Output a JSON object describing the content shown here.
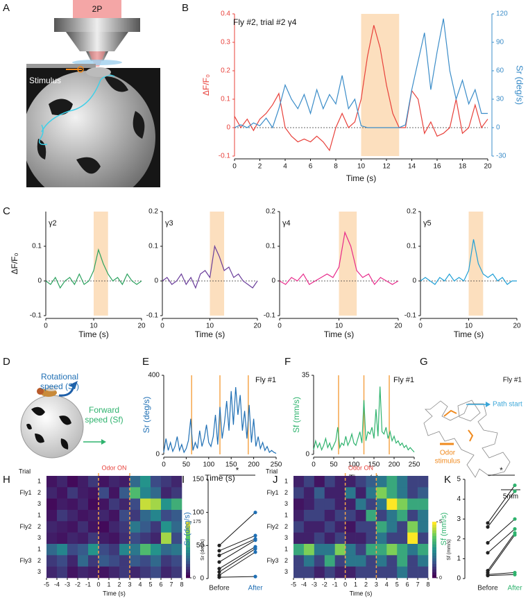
{
  "panel_labels": [
    "A",
    "B",
    "C",
    "D",
    "E",
    "F",
    "G",
    "H",
    "I",
    "J",
    "K"
  ],
  "illustrations": {
    "a_objective": "2P",
    "a_stimulus": "Stimulus",
    "d_rotational": [
      "Rotational",
      "speed (Sr)"
    ],
    "d_forward": [
      "Forward",
      "speed (Sf)"
    ],
    "g_title": "Fly #1",
    "g_path_start": "Path start",
    "g_odor": [
      "Odor",
      "stimulus"
    ],
    "g_scale": "5mm"
  },
  "chart_data": [
    {
      "type": "line",
      "title": "Fly #2, trial #2 γ4",
      "xlabel": "Time (s)",
      "ylabel": "ΔF/F₀",
      "y2label": "Sr (deg/s)",
      "x": [
        0,
        0.5,
        1,
        1.5,
        2,
        2.5,
        3,
        3.5,
        4,
        4.5,
        5,
        5.5,
        6,
        6.5,
        7,
        7.5,
        8,
        8.5,
        9,
        9.5,
        10,
        10.5,
        11,
        11.5,
        12,
        12.5,
        13,
        13.5,
        14,
        14.5,
        15,
        15.5,
        16,
        16.5,
        17,
        17.5,
        18,
        18.5,
        19,
        19.5,
        20
      ],
      "xlim": [
        0,
        20
      ],
      "xticks": [
        0,
        2,
        4,
        6,
        8,
        10,
        12,
        14,
        16,
        18,
        20
      ],
      "ylim": [
        -0.1,
        0.4
      ],
      "yticks": [
        -0.1,
        0,
        0.1,
        0.2,
        0.3,
        0.4
      ],
      "y2lim": [
        -30,
        120
      ],
      "y2ticks": [
        -30,
        0,
        30,
        60,
        90,
        120
      ],
      "highlight": [
        10,
        13
      ],
      "zero_line": true,
      "series": [
        {
          "color": "#e8403a",
          "values": [
            0.04,
            0.0,
            0.03,
            -0.01,
            0.03,
            0.05,
            0.08,
            0.12,
            0.0,
            -0.03,
            -0.05,
            -0.04,
            -0.05,
            -0.03,
            -0.05,
            -0.08,
            0.0,
            0.05,
            0.0,
            0.02,
            0.1,
            0.25,
            0.36,
            0.28,
            0.15,
            0.05,
            0.0,
            0.0,
            0.13,
            0.1,
            -0.02,
            0.02,
            -0.03,
            -0.02,
            0.0,
            0.1,
            -0.02,
            0.0,
            0.08,
            0.0,
            0.03
          ]
        },
        {
          "color": "#3a8cc8",
          "axis": "y2",
          "values": [
            0,
            3,
            0,
            5,
            2,
            10,
            0,
            20,
            45,
            30,
            20,
            35,
            15,
            40,
            20,
            35,
            25,
            55,
            20,
            30,
            2,
            0,
            0,
            0,
            0,
            0,
            0,
            3,
            40,
            70,
            100,
            40,
            80,
            115,
            60,
            30,
            50,
            25,
            40,
            15,
            15
          ]
        }
      ]
    },
    {
      "type": "line",
      "title": "γ2",
      "xlabel": "Time (s)",
      "ylabel": "ΔF/F₀",
      "x": [
        0,
        1,
        2,
        3,
        4,
        5,
        6,
        7,
        8,
        9,
        10,
        11,
        12,
        13,
        14,
        15,
        16,
        17,
        18,
        19,
        20
      ],
      "xlim": [
        0,
        20
      ],
      "xticks": [
        0,
        10,
        20
      ],
      "ylim": [
        -0.1,
        0.2
      ],
      "yticks": [
        -0.1,
        0,
        0.1
      ],
      "highlight": [
        10,
        13
      ],
      "zero_line": true,
      "series": [
        {
          "color": "#2ca25f",
          "values": [
            0,
            -0.01,
            0.01,
            -0.02,
            0,
            0.01,
            -0.01,
            0.02,
            -0.01,
            0,
            0.03,
            0.09,
            0.05,
            0.02,
            0,
            0.01,
            -0.01,
            0.02,
            0,
            -0.01,
            0
          ]
        }
      ]
    },
    {
      "type": "line",
      "title": "γ3",
      "xlabel": "Time (s)",
      "x": [
        0,
        1,
        2,
        3,
        4,
        5,
        6,
        7,
        8,
        9,
        10,
        11,
        12,
        13,
        14,
        15,
        16,
        17,
        18,
        19,
        20
      ],
      "xlim": [
        0,
        20
      ],
      "xticks": [
        0,
        10,
        20
      ],
      "ylim": [
        -0.1,
        0.2
      ],
      "yticks": [
        -0.1,
        0,
        0.1,
        0.2
      ],
      "highlight": [
        10,
        13
      ],
      "zero_line": true,
      "series": [
        {
          "color": "#6a3d9a",
          "values": [
            0,
            0.01,
            -0.01,
            0,
            0.02,
            -0.01,
            0.01,
            -0.02,
            0.02,
            0.03,
            0.01,
            0.1,
            0.07,
            0.03,
            0.04,
            0.01,
            0.02,
            0,
            -0.01,
            -0.02,
            0
          ]
        }
      ]
    },
    {
      "type": "line",
      "title": "γ4",
      "xlabel": "Time (s)",
      "x": [
        0,
        1,
        2,
        3,
        4,
        5,
        6,
        7,
        8,
        9,
        10,
        11,
        12,
        13,
        14,
        15,
        16,
        17,
        18,
        19,
        20
      ],
      "xlim": [
        0,
        20
      ],
      "xticks": [
        0,
        10,
        20
      ],
      "ylim": [
        -0.1,
        0.2
      ],
      "yticks": [
        -0.1,
        0,
        0.1,
        0.2
      ],
      "highlight": [
        10,
        13
      ],
      "zero_line": true,
      "series": [
        {
          "color": "#e7298a",
          "values": [
            0,
            -0.01,
            0.01,
            0,
            0.02,
            -0.01,
            0,
            0.01,
            0.02,
            0.01,
            0.04,
            0.14,
            0.1,
            0.03,
            0.01,
            0.02,
            -0.01,
            0.01,
            0,
            -0.01,
            0
          ]
        }
      ]
    },
    {
      "type": "line",
      "title": "γ5",
      "xlabel": "Time (s)",
      "x": [
        0,
        1,
        2,
        3,
        4,
        5,
        6,
        7,
        8,
        9,
        10,
        11,
        12,
        13,
        14,
        15,
        16,
        17,
        18,
        19,
        20
      ],
      "xlim": [
        0,
        20
      ],
      "xticks": [
        0,
        10,
        20
      ],
      "ylim": [
        -0.1,
        0.2
      ],
      "yticks": [
        -0.1,
        0,
        0.1,
        0.2
      ],
      "highlight": [
        10,
        13
      ],
      "zero_line": true,
      "series": [
        {
          "color": "#1f9fd6",
          "values": [
            0,
            0.01,
            0,
            -0.01,
            0.01,
            0,
            0.02,
            0,
            0.01,
            0,
            0.03,
            0.12,
            0.05,
            0.02,
            0.01,
            0.02,
            0,
            0.01,
            -0.01,
            0,
            0
          ]
        }
      ]
    },
    {
      "type": "line",
      "title": "Fly #1",
      "xlabel": "Time (s)",
      "ylabel": "Sr (deg/s)",
      "ylabel_color": "#1f6fb4",
      "x": [
        0,
        5,
        10,
        15,
        20,
        25,
        30,
        35,
        40,
        45,
        50,
        55,
        60,
        65,
        70,
        75,
        80,
        85,
        90,
        95,
        100,
        105,
        110,
        115,
        120,
        125,
        130,
        135,
        140,
        145,
        150,
        155,
        160,
        165,
        170,
        175,
        180,
        185,
        190,
        195,
        200,
        205,
        210,
        215,
        220,
        225,
        230,
        235,
        240,
        245,
        250
      ],
      "xlim": [
        0,
        250
      ],
      "xticks": [
        0,
        50,
        100,
        150,
        200,
        250
      ],
      "ylim": [
        0,
        400
      ],
      "yticks": [
        0,
        400
      ],
      "stimulus_lines": [
        62,
        125,
        188
      ],
      "stimulus_color": "#f5a54a",
      "series": [
        {
          "color": "#1f6fb4",
          "values": [
            10,
            80,
            20,
            60,
            15,
            40,
            90,
            20,
            50,
            10,
            30,
            70,
            180,
            20,
            60,
            30,
            120,
            40,
            80,
            150,
            60,
            40,
            90,
            200,
            50,
            240,
            80,
            160,
            270,
            120,
            320,
            150,
            340,
            200,
            300,
            120,
            220,
            80,
            250,
            60,
            180,
            40,
            90,
            30,
            60,
            20,
            40,
            10,
            20,
            10,
            5
          ]
        }
      ]
    },
    {
      "type": "line",
      "title": "Fly #1",
      "xlabel": "Time (s)",
      "ylabel": "Sf (mm/s)",
      "ylabel_color": "#2fb36e",
      "x": [
        0,
        5,
        10,
        15,
        20,
        25,
        30,
        35,
        40,
        45,
        50,
        55,
        60,
        65,
        70,
        75,
        80,
        85,
        90,
        95,
        100,
        105,
        110,
        115,
        120,
        125,
        130,
        135,
        140,
        145,
        150,
        155,
        160,
        165,
        170,
        175,
        180,
        185,
        190,
        195,
        200,
        205,
        210,
        215,
        220,
        225,
        230,
        235,
        240,
        245,
        250
      ],
      "xlim": [
        0,
        250
      ],
      "xticks": [
        0,
        50,
        100,
        150,
        200,
        250
      ],
      "ylim": [
        0,
        35
      ],
      "yticks": [
        0,
        35
      ],
      "stimulus_lines": [
        62,
        125,
        188
      ],
      "stimulus_color": "#f5a54a",
      "series": [
        {
          "color": "#2fb36e",
          "values": [
            2,
            6,
            3,
            5,
            2,
            4,
            7,
            3,
            5,
            2,
            4,
            6,
            12,
            3,
            5,
            4,
            8,
            4,
            6,
            9,
            5,
            4,
            7,
            10,
            5,
            24,
            6,
            10,
            9,
            12,
            7,
            20,
            8,
            30,
            10,
            9,
            12,
            7,
            10,
            6,
            8,
            5,
            6,
            4,
            5,
            3,
            4,
            2,
            3,
            2,
            1
          ]
        }
      ]
    },
    {
      "type": "heatmap",
      "ylabel": "Trial",
      "xlabel": "Time (s)",
      "annotation": "Odor ON",
      "annotation_color": "#e8403a",
      "xlim": [
        -5,
        8
      ],
      "xticks": [
        -5,
        -4,
        -3,
        -2,
        -1,
        0,
        1,
        2,
        3,
        4,
        5,
        6,
        7,
        8
      ],
      "markers": [
        0,
        3
      ],
      "marker_color": "#f5a54a",
      "row_labels": [
        "1",
        "2",
        "3",
        "1",
        "2",
        "3",
        "1",
        "2",
        "3"
      ],
      "group_labels": [
        "Fly1",
        "Fly2",
        "Fly3"
      ],
      "clim": [
        0,
        175
      ],
      "cticks": [
        0,
        175
      ],
      "clabel": "Sr (deg/s)",
      "values": [
        [
          10,
          20,
          5,
          15,
          30,
          10,
          20,
          15,
          60,
          90,
          40,
          30,
          20
        ],
        [
          20,
          10,
          30,
          15,
          10,
          40,
          10,
          50,
          120,
          80,
          60,
          20,
          30
        ],
        [
          5,
          15,
          10,
          20,
          5,
          10,
          30,
          20,
          40,
          160,
          150,
          90,
          110
        ],
        [
          10,
          30,
          20,
          10,
          15,
          20,
          10,
          40,
          30,
          60,
          80,
          40,
          50
        ],
        [
          20,
          15,
          10,
          25,
          10,
          5,
          20,
          30,
          70,
          50,
          30,
          90,
          60
        ],
        [
          15,
          10,
          20,
          15,
          30,
          15,
          10,
          25,
          40,
          30,
          20,
          150,
          40
        ],
        [
          60,
          80,
          40,
          50,
          90,
          40,
          30,
          80,
          70,
          120,
          90,
          60,
          70
        ],
        [
          30,
          40,
          20,
          60,
          30,
          50,
          40,
          30,
          50,
          40,
          60,
          30,
          40
        ],
        [
          20,
          30,
          10,
          20,
          15,
          10,
          20,
          30,
          20,
          30,
          40,
          20,
          30
        ]
      ]
    },
    {
      "type": "paired",
      "ylabel": "Sr (deg/s)",
      "ylabel_color": "#1f6fb4",
      "categories": [
        "Before",
        "After"
      ],
      "category_colors": [
        "#222222",
        "#1f6fb4"
      ],
      "ylim": [
        0,
        150
      ],
      "yticks": [
        0,
        50,
        100,
        150
      ],
      "annotation": "*",
      "series": [
        {
          "values": [
            50,
            100
          ]
        },
        {
          "values": [
            42,
            65
          ]
        },
        {
          "values": [
            35,
            60
          ]
        },
        {
          "values": [
            25,
            58
          ]
        },
        {
          "values": [
            15,
            48
          ]
        },
        {
          "values": [
            10,
            45
          ]
        },
        {
          "values": [
            5,
            40
          ]
        },
        {
          "values": [
            2,
            3
          ]
        }
      ]
    },
    {
      "type": "heatmap",
      "ylabel": "Trial",
      "xlabel": "Time (s)",
      "annotation": "Odor ON",
      "annotation_color": "#e8403a",
      "xlim": [
        -5,
        8
      ],
      "xticks": [
        -5,
        -4,
        -3,
        -2,
        -1,
        0,
        1,
        2,
        3,
        4,
        5,
        6,
        7,
        8
      ],
      "markers": [
        0,
        3
      ],
      "marker_color": "#f5a54a",
      "row_labels": [
        "1",
        "2",
        "3",
        "1",
        "2",
        "3",
        "1",
        "2",
        "3"
      ],
      "group_labels": [
        "Fly1",
        "Fly2",
        "Fly3"
      ],
      "clim": [
        0,
        5
      ],
      "cticks": [
        0,
        5
      ],
      "clabel": "Sf (mm/s)",
      "values": [
        [
          0.5,
          1,
          0.3,
          1,
          0.5,
          0.5,
          1,
          1.5,
          2,
          3,
          2,
          1,
          1
        ],
        [
          1,
          0.5,
          1.5,
          0.5,
          0.5,
          2,
          0.5,
          2,
          4,
          3,
          2,
          1,
          1.5
        ],
        [
          0.3,
          0.5,
          1,
          1,
          0.5,
          0.5,
          2,
          1,
          2,
          5,
          4,
          3,
          3
        ],
        [
          0.5,
          1,
          1,
          0.5,
          1,
          1,
          0.5,
          3,
          1,
          2,
          3,
          1,
          2
        ],
        [
          1,
          0.5,
          0.5,
          1,
          0.5,
          0.3,
          1,
          1,
          3,
          2,
          1,
          4,
          2
        ],
        [
          0.5,
          0.5,
          1,
          0.5,
          1,
          0.5,
          0.5,
          1,
          2,
          1,
          1,
          5,
          1
        ],
        [
          3,
          4,
          2,
          2,
          4,
          2,
          1,
          3,
          3,
          4,
          3,
          2,
          3
        ],
        [
          1,
          2,
          1,
          3,
          1,
          2,
          2,
          1,
          2,
          1,
          3,
          1,
          2
        ],
        [
          1,
          1,
          0.5,
          1,
          0.5,
          0.5,
          1,
          1,
          1,
          1,
          2,
          1,
          1
        ]
      ]
    },
    {
      "type": "paired",
      "ylabel": "Sf (mm/s)",
      "ylabel_color": "#2fb36e",
      "categories": [
        "Before",
        "After"
      ],
      "category_colors": [
        "#222222",
        "#2fb36e"
      ],
      "ylim": [
        0,
        5
      ],
      "yticks": [
        0,
        1,
        2,
        3,
        4,
        5
      ],
      "annotation": "*",
      "series": [
        {
          "values": [
            2.8,
            4.7
          ]
        },
        {
          "values": [
            2.6,
            4.4
          ]
        },
        {
          "values": [
            1.8,
            3.0
          ]
        },
        {
          "values": [
            1.3,
            2.5
          ]
        },
        {
          "values": [
            0.4,
            2.3
          ]
        },
        {
          "values": [
            0.3,
            2.2
          ]
        },
        {
          "values": [
            0.2,
            0.3
          ]
        },
        {
          "values": [
            0.15,
            0.2
          ]
        }
      ]
    }
  ]
}
